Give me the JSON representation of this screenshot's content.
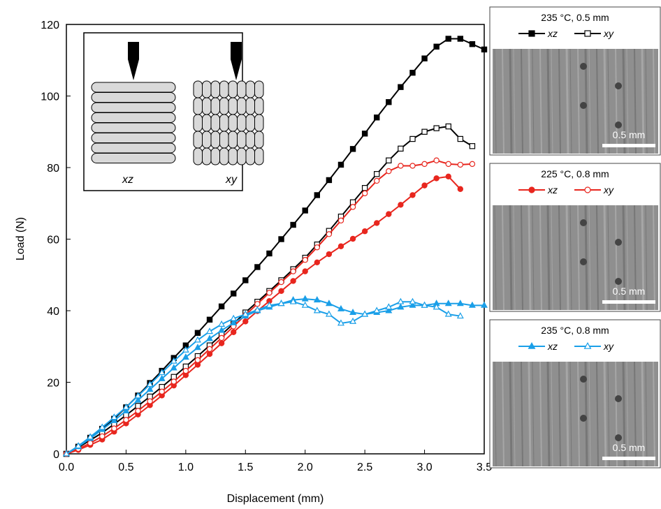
{
  "chart_data": {
    "type": "line",
    "xlabel": "Displacement (mm)",
    "ylabel": "Load (N)",
    "xlim": [
      0,
      3.5
    ],
    "ylim": [
      0,
      120
    ],
    "xticks": [
      {
        "value": 0,
        "label": "0.0"
      },
      0.5,
      {
        "value": 1,
        "label": "1.0"
      },
      1.5,
      {
        "value": 2,
        "label": "2.0"
      },
      2.5,
      {
        "value": 3,
        "label": "3.0"
      },
      3.5
    ],
    "yticks": [
      0,
      20,
      40,
      60,
      80,
      100,
      120
    ],
    "inset_labels": [
      "xz",
      "xy"
    ],
    "legend_groups": [
      {
        "title": "235 °C, 0.5 mm",
        "scale_bar": "0.5 mm"
      },
      {
        "title": "225 °C, 0.8 mm",
        "scale_bar": "0.5 mm"
      },
      {
        "title": "235 °C, 0.8 mm",
        "scale_bar": "0.5 mm"
      }
    ],
    "series": [
      {
        "name": "xz",
        "color": "#000000",
        "marker": "square",
        "filled": true,
        "x": [
          0,
          0.1,
          0.2,
          0.3,
          0.4,
          0.5,
          0.6,
          0.7,
          0.8,
          0.9,
          1.0,
          1.1,
          1.2,
          1.3,
          1.4,
          1.5,
          1.6,
          1.7,
          1.8,
          1.9,
          2.0,
          2.1,
          2.2,
          2.3,
          2.4,
          2.5,
          2.6,
          2.7,
          2.8,
          2.9,
          3.0,
          3.1,
          3.2,
          3.3,
          3.4,
          3.5
        ],
        "values": [
          0,
          2,
          4.5,
          7,
          9.8,
          13,
          16.3,
          19.8,
          23.2,
          26.8,
          30.3,
          33.8,
          37.5,
          41.2,
          44.8,
          48.5,
          52.2,
          56,
          60,
          64,
          68,
          72.3,
          76.5,
          80.8,
          85.2,
          89.5,
          94,
          98.3,
          102.5,
          106.5,
          110.5,
          113.8,
          116,
          116,
          114.5,
          113
        ]
      },
      {
        "name": "xy",
        "color": "#000000",
        "marker": "square",
        "filled": false,
        "x": [
          0,
          0.1,
          0.2,
          0.3,
          0.4,
          0.5,
          0.6,
          0.7,
          0.8,
          0.9,
          1.0,
          1.1,
          1.2,
          1.3,
          1.4,
          1.5,
          1.6,
          1.7,
          1.8,
          1.9,
          2.0,
          2.1,
          2.2,
          2.3,
          2.4,
          2.5,
          2.6,
          2.7,
          2.8,
          2.9,
          3.0,
          3.1,
          3.2,
          3.3,
          3.4
        ],
        "values": [
          0,
          1.8,
          3.8,
          5.9,
          8.3,
          10.8,
          13.4,
          16,
          18.7,
          21.5,
          24.4,
          27.3,
          30.3,
          33.3,
          36.4,
          39.5,
          42.5,
          45.5,
          48.5,
          51.6,
          54.8,
          58.5,
          62.3,
          66.3,
          70.3,
          74.3,
          78.2,
          82,
          85.3,
          88,
          90,
          91,
          91.5,
          88,
          86
        ]
      },
      {
        "name": "xz",
        "color": "#e8261e",
        "marker": "circle",
        "filled": true,
        "x": [
          0,
          0.1,
          0.2,
          0.3,
          0.4,
          0.5,
          0.6,
          0.7,
          0.8,
          0.9,
          1.0,
          1.1,
          1.2,
          1.3,
          1.4,
          1.5,
          1.6,
          1.7,
          1.8,
          1.9,
          2.0,
          2.1,
          2.2,
          2.3,
          2.4,
          2.5,
          2.6,
          2.7,
          2.8,
          2.9,
          3.0,
          3.1,
          3.2,
          3.3
        ],
        "values": [
          0,
          1.1,
          2.5,
          4,
          6.2,
          8.5,
          11,
          13.6,
          16.3,
          19.1,
          22,
          24.9,
          27.9,
          30.9,
          34,
          37,
          39.9,
          42.7,
          45.5,
          48.3,
          51,
          53.5,
          55.8,
          58,
          60.1,
          62.2,
          64.5,
          67,
          69.6,
          72.3,
          75,
          77,
          77.5,
          74
        ]
      },
      {
        "name": "xy",
        "color": "#e8261e",
        "marker": "circle",
        "filled": false,
        "x": [
          0,
          0.1,
          0.2,
          0.3,
          0.4,
          0.5,
          0.6,
          0.7,
          0.8,
          0.9,
          1.0,
          1.1,
          1.2,
          1.3,
          1.4,
          1.5,
          1.6,
          1.7,
          1.8,
          1.9,
          2.0,
          2.1,
          2.2,
          2.3,
          2.4,
          2.5,
          2.6,
          2.7,
          2.8,
          2.9,
          3.0,
          3.1,
          3.2,
          3.3,
          3.4
        ],
        "values": [
          0,
          1.4,
          3,
          4.9,
          7.1,
          9.5,
          12,
          14.7,
          17.4,
          20.2,
          23.2,
          26.2,
          29.3,
          32.4,
          35.6,
          38.8,
          41.9,
          45,
          48,
          51,
          54.2,
          57.7,
          61.4,
          65.2,
          69,
          72.8,
          76.3,
          79,
          80.5,
          80.5,
          81,
          82,
          81,
          80.8,
          81
        ]
      },
      {
        "name": "xz",
        "color": "#1a9fe8",
        "marker": "triangle",
        "filled": true,
        "x": [
          0,
          0.1,
          0.2,
          0.3,
          0.4,
          0.5,
          0.6,
          0.7,
          0.8,
          0.9,
          1.0,
          1.1,
          1.2,
          1.3,
          1.4,
          1.5,
          1.6,
          1.7,
          1.8,
          1.9,
          2.0,
          2.1,
          2.2,
          2.3,
          2.4,
          2.5,
          2.6,
          2.7,
          2.8,
          2.9,
          3.0,
          3.1,
          3.2,
          3.3,
          3.4,
          3.5
        ],
        "values": [
          0,
          2,
          4.3,
          6.8,
          9.3,
          12,
          15,
          18,
          21,
          24,
          27,
          29.7,
          32.2,
          34.5,
          36.6,
          38.5,
          40,
          41,
          42,
          43,
          43.3,
          43,
          42,
          40.5,
          39.5,
          39,
          39.5,
          40,
          41,
          41.5,
          41.5,
          42,
          42,
          42,
          41.5,
          41.5
        ]
      },
      {
        "name": "xy",
        "color": "#1a9fe8",
        "marker": "triangle",
        "filled": false,
        "x": [
          0,
          0.1,
          0.2,
          0.3,
          0.4,
          0.5,
          0.6,
          0.7,
          0.8,
          0.9,
          1.0,
          1.1,
          1.2,
          1.3,
          1.4,
          1.5,
          1.6,
          1.7,
          1.8,
          1.9,
          2.0,
          2.1,
          2.2,
          2.3,
          2.4,
          2.5,
          2.6,
          2.7,
          2.8,
          2.9,
          3.0,
          3.1,
          3.2,
          3.3
        ],
        "values": [
          0,
          2.2,
          4.7,
          7.4,
          10.2,
          13,
          16.2,
          19.4,
          22.7,
          25.9,
          29,
          31.8,
          34.2,
          36.2,
          37.8,
          39,
          40.2,
          41.5,
          42,
          42.5,
          41.5,
          40,
          39,
          36.5,
          37,
          39,
          40,
          41,
          42.5,
          42.5,
          41.5,
          41,
          39,
          38.5
        ]
      }
    ]
  }
}
